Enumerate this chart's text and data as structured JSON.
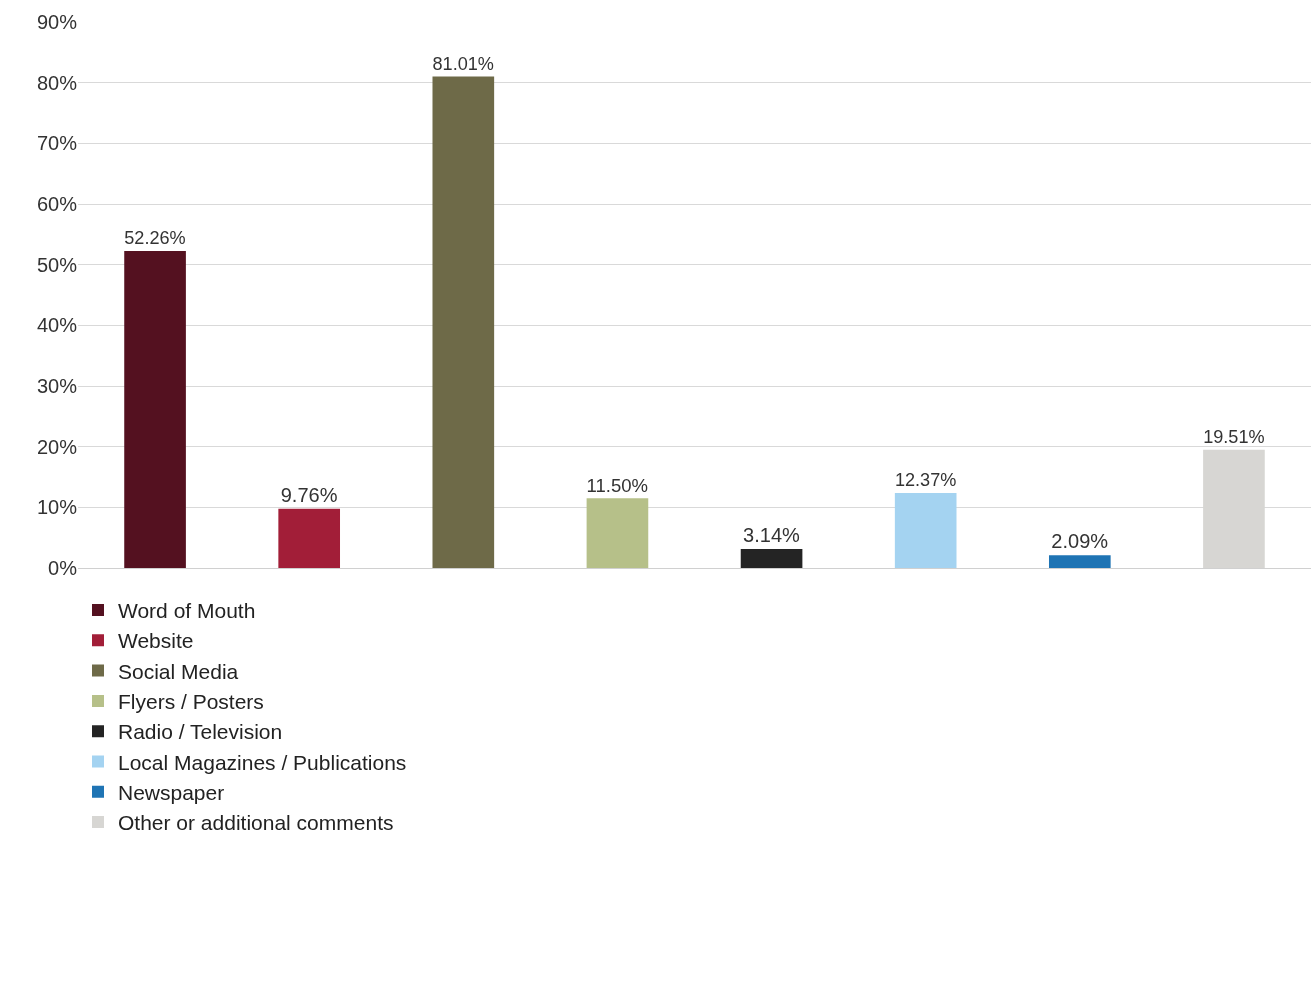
{
  "chart_data": {
    "type": "bar",
    "categories": [
      null,
      null,
      null,
      null,
      null,
      null,
      null,
      null
    ],
    "series": [
      {
        "name": "Word of Mouth",
        "color": "#541120",
        "values": [
          52.26,
          null,
          null,
          null,
          null,
          null,
          null,
          null
        ],
        "value_labels": [
          "52.26%",
          null,
          null,
          null,
          null,
          null,
          null,
          null
        ]
      },
      {
        "name": "Website",
        "color": "#a21e38",
        "values": [
          null,
          9.76,
          null,
          null,
          null,
          null,
          null,
          null
        ],
        "value_labels": [
          null,
          "9.76%",
          null,
          null,
          null,
          null,
          null,
          null
        ]
      },
      {
        "name": "Social Media",
        "color": "#6e6a48",
        "values": [
          null,
          null,
          81.01,
          null,
          null,
          null,
          null,
          null
        ],
        "value_labels": [
          null,
          null,
          "81.01%",
          null,
          null,
          null,
          null,
          null
        ]
      },
      {
        "name": "Flyers / Posters",
        "color": "#b6c089",
        "values": [
          null,
          null,
          null,
          11.5,
          null,
          null,
          null,
          null
        ],
        "value_labels": [
          null,
          null,
          null,
          "11.50%",
          null,
          null,
          null,
          null
        ]
      },
      {
        "name": "Radio / Television",
        "color": "#242424",
        "values": [
          null,
          null,
          null,
          null,
          3.14,
          null,
          null,
          null
        ],
        "value_labels": [
          null,
          null,
          null,
          null,
          "3.14%",
          null,
          null,
          null
        ]
      },
      {
        "name": "Local Magazines / Publications",
        "color": "#a4d3f1",
        "values": [
          null,
          null,
          null,
          null,
          null,
          12.37,
          null,
          null
        ],
        "value_labels": [
          null,
          null,
          null,
          null,
          null,
          "12.37%",
          null,
          null
        ]
      },
      {
        "name": "Newspaper",
        "color": "#1f74b4",
        "values": [
          null,
          null,
          null,
          null,
          null,
          null,
          2.09,
          null
        ],
        "value_labels": [
          null,
          null,
          null,
          null,
          null,
          null,
          "2.09%",
          null
        ]
      },
      {
        "name": "Other or additional comments",
        "color": "#d7d6d3",
        "values": [
          null,
          null,
          null,
          null,
          null,
          null,
          null,
          19.51
        ],
        "value_labels": [
          null,
          null,
          null,
          null,
          null,
          null,
          null,
          "19.51%"
        ]
      }
    ],
    "ylim": [
      0,
      90
    ],
    "yticks": [
      {
        "value": 0,
        "label": "0%"
      },
      {
        "value": 10,
        "label": "10%"
      },
      {
        "value": 20,
        "label": "20%"
      },
      {
        "value": 30,
        "label": "30%"
      },
      {
        "value": 40,
        "label": "40%"
      },
      {
        "value": 50,
        "label": "50%"
      },
      {
        "value": 60,
        "label": "60%"
      },
      {
        "value": 70,
        "label": "70%"
      },
      {
        "value": 80,
        "label": "80%"
      },
      {
        "value": 90,
        "label": "90%"
      }
    ],
    "grid": "y",
    "legend": "bottom",
    "tick_labels": "y"
  }
}
